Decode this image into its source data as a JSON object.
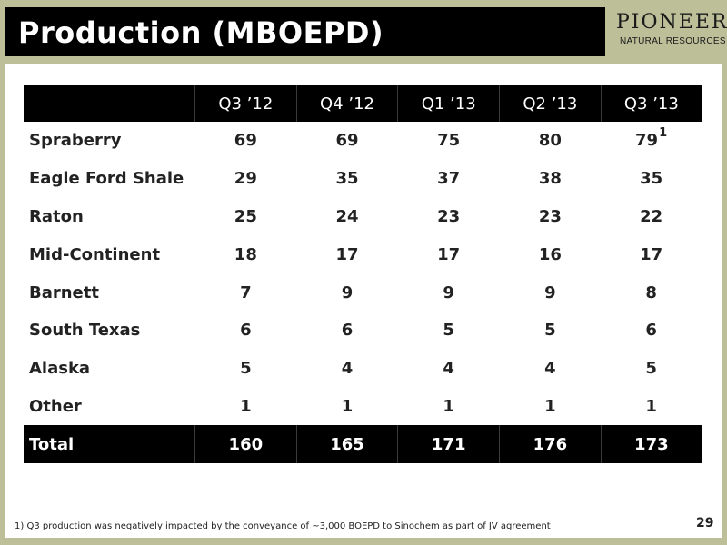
{
  "slide": {
    "title": "Production (MBOEPD)",
    "page_number": "29"
  },
  "logo": {
    "name": "PIONEER",
    "subtitle": "NATURAL RESOURCES"
  },
  "table": {
    "columns": [
      "Q3 ’12",
      "Q4 ’12",
      "Q1 ’13",
      "Q2 ’13",
      "Q3 ’13"
    ],
    "rows": [
      {
        "label": "Spraberry",
        "values": [
          "69",
          "69",
          "75",
          "80",
          "79"
        ],
        "footnote_marker": "1"
      },
      {
        "label": "Eagle Ford Shale",
        "values": [
          "29",
          "35",
          "37",
          "38",
          "35"
        ]
      },
      {
        "label": "Raton",
        "values": [
          "25",
          "24",
          "23",
          "23",
          "22"
        ]
      },
      {
        "label": "Mid-Continent",
        "values": [
          "18",
          "17",
          "17",
          "16",
          "17"
        ]
      },
      {
        "label": "Barnett",
        "values": [
          "7",
          "9",
          "9",
          "9",
          "8"
        ]
      },
      {
        "label": "South Texas",
        "values": [
          "6",
          "6",
          "5",
          "5",
          "6"
        ]
      },
      {
        "label": "Alaska",
        "values": [
          "5",
          "4",
          "4",
          "4",
          "5"
        ]
      },
      {
        "label": "Other",
        "values": [
          "1",
          "1",
          "1",
          "1",
          "1"
        ]
      }
    ],
    "total": {
      "label": "Total",
      "values": [
        "160",
        "165",
        "171",
        "176",
        "173"
      ]
    }
  },
  "footnote": "1)  Q3 production was negatively impacted by the conveyance of ~3,000 BOEPD to Sinochem as part of JV agreement",
  "colors": {
    "background": "#bcbf98",
    "header_bar": "#000000",
    "content_panel": "#ffffff"
  }
}
